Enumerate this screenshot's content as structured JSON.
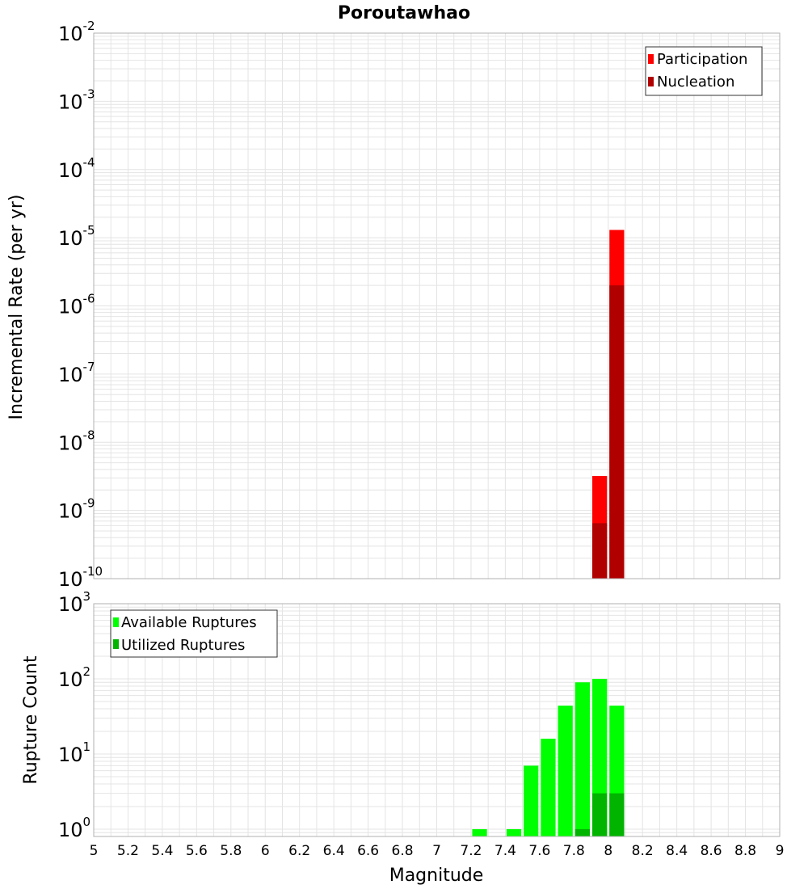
{
  "title": "Poroutawhao",
  "colors": {
    "participation": "#ff0000",
    "nucleation": "#b00000",
    "available": "#00ff00",
    "utilized": "#00b400",
    "grid": "#e4e4e4",
    "frame": "#b0b0b0"
  },
  "chart_data": [
    {
      "type": "bar",
      "title": "Poroutawhao",
      "xlabel": "",
      "ylabel": "Incremental Rate (per yr)",
      "x_range": [
        5,
        9
      ],
      "y_scale": "log",
      "y_range": [
        1e-10,
        0.01
      ],
      "y_tick_exponents": [
        "-10",
        "-9",
        "-8",
        "-7",
        "-6",
        "-5",
        "-4",
        "-3",
        "-2"
      ],
      "legend": {
        "position": "top-right",
        "entries": [
          "Participation",
          "Nucleation"
        ]
      },
      "bin_width": 0.1,
      "series": [
        {
          "name": "Participation",
          "x": [
            7.95,
            8.05
          ],
          "values": [
            3.2e-09,
            1.3e-05
          ]
        },
        {
          "name": "Nucleation",
          "x": [
            7.95,
            8.05
          ],
          "values": [
            6.5e-10,
            2e-06
          ]
        }
      ]
    },
    {
      "type": "bar",
      "xlabel": "Magnitude",
      "ylabel": "Rupture Count",
      "x_range": [
        5,
        9
      ],
      "x_ticks": [
        "5",
        "5.2",
        "5.4",
        "5.6",
        "5.8",
        "6",
        "6.2",
        "6.4",
        "6.6",
        "6.8",
        "7",
        "7.2",
        "7.4",
        "7.6",
        "7.8",
        "8",
        "8.2",
        "8.4",
        "8.6",
        "8.8",
        "9"
      ],
      "y_scale": "log",
      "y_range": [
        0.8,
        1000
      ],
      "y_tick_exponents": [
        "0",
        "1",
        "2",
        "3"
      ],
      "legend": {
        "position": "top-left",
        "entries": [
          "Available Ruptures",
          "Utilized Ruptures"
        ]
      },
      "bin_width": 0.1,
      "series": [
        {
          "name": "Available Ruptures",
          "x": [
            7.25,
            7.45,
            7.55,
            7.65,
            7.75,
            7.85,
            7.95,
            8.05
          ],
          "values": [
            1,
            1,
            7,
            16,
            44,
            90,
            100,
            44
          ]
        },
        {
          "name": "Utilized Ruptures",
          "x": [
            7.85,
            7.95,
            8.05
          ],
          "values": [
            1,
            3,
            3
          ]
        }
      ]
    }
  ]
}
